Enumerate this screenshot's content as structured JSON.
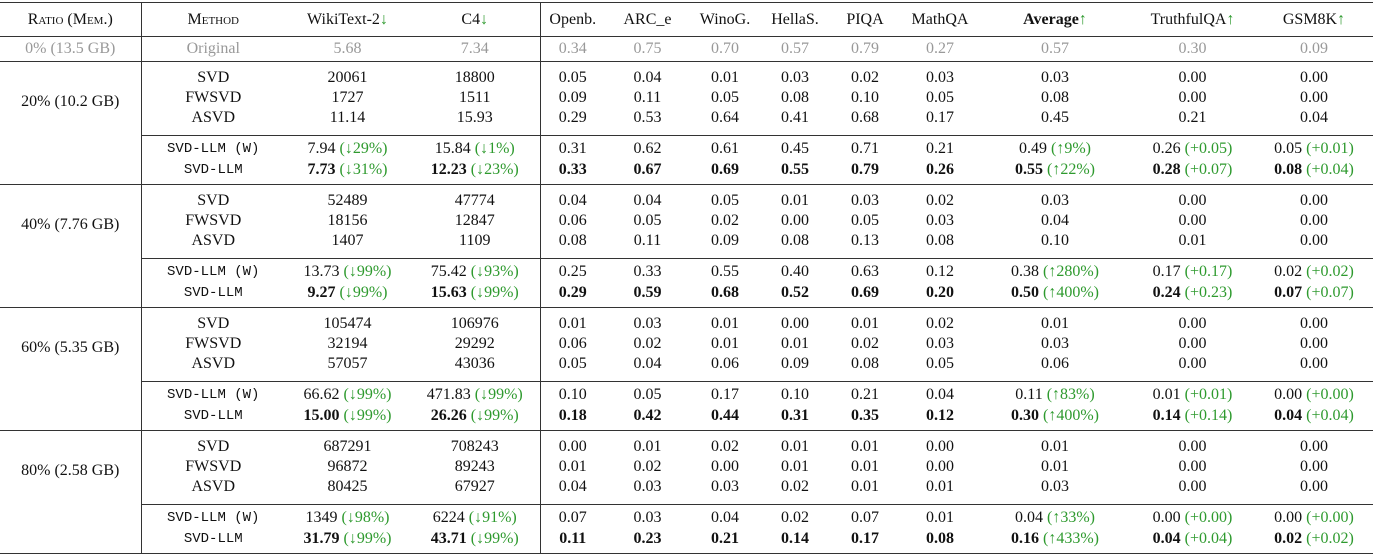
{
  "header": {
    "columns": [
      {
        "text": "Ratio (Mem.)",
        "smallcaps": true
      },
      {
        "text": "Method",
        "smallcaps": true
      },
      {
        "text": "WikiText-2",
        "arrow": "↓"
      },
      {
        "text": "C4",
        "arrow": "↓"
      },
      {
        "text": "Openb."
      },
      {
        "text": "ARC_e"
      },
      {
        "text": "WinoG."
      },
      {
        "text": "HellaS."
      },
      {
        "text": "PIQA"
      },
      {
        "text": "MathQA"
      },
      {
        "text": "Average",
        "arrow": "↑",
        "bold": true
      },
      {
        "text": "TruthfulQA",
        "arrow": "↑"
      },
      {
        "text": "GSM8K",
        "arrow": "↑"
      }
    ]
  },
  "original": {
    "ratio": "0% (13.5 GB)",
    "method": "Original",
    "cells": [
      "5.68",
      "7.34",
      "0.34",
      "0.75",
      "0.70",
      "0.57",
      "0.79",
      "0.27",
      "0.57",
      "0.30",
      "0.09"
    ]
  },
  "groups": [
    {
      "ratio": "20% (10.2 GB)",
      "baselines": [
        {
          "method": "SVD",
          "cells": [
            "20061",
            "18800",
            "0.05",
            "0.04",
            "0.01",
            "0.03",
            "0.02",
            "0.03",
            "0.03",
            "0.00",
            "0.00"
          ]
        },
        {
          "method": "FWSVD",
          "cells": [
            "1727",
            "1511",
            "0.09",
            "0.11",
            "0.05",
            "0.08",
            "0.10",
            "0.05",
            "0.08",
            "0.00",
            "0.00"
          ]
        },
        {
          "method": "ASVD",
          "cells": [
            "11.14",
            "15.93",
            "0.29",
            "0.53",
            "0.64",
            "0.41",
            "0.68",
            "0.17",
            "0.45",
            "0.21",
            "0.04"
          ]
        }
      ],
      "ours": [
        {
          "method": "SVD-LLM (W)",
          "cells": [
            {
              "value": "7.94",
              "delta": "(↓29%)"
            },
            {
              "value": "15.84",
              "delta": "(↓1%)"
            },
            "0.31",
            "0.62",
            "0.61",
            "0.45",
            "0.71",
            "0.21",
            {
              "value": "0.49",
              "delta": "(↑9%)"
            },
            {
              "value": "0.26",
              "delta": "(+0.05)"
            },
            {
              "value": "0.05",
              "delta": "(+0.01)"
            }
          ]
        },
        {
          "method": "SVD-LLM",
          "bold": true,
          "cells": [
            {
              "value": "7.73",
              "delta": "(↓31%)"
            },
            {
              "value": "12.23",
              "delta": "(↓23%)"
            },
            "0.33",
            "0.67",
            "0.69",
            "0.55",
            "0.79",
            "0.26",
            {
              "value": "0.55",
              "delta": "(↑22%)"
            },
            {
              "value": "0.28",
              "delta": "(+0.07)"
            },
            {
              "value": "0.08",
              "delta": "(+0.04)"
            }
          ]
        }
      ]
    },
    {
      "ratio": "40% (7.76 GB)",
      "baselines": [
        {
          "method": "SVD",
          "cells": [
            "52489",
            "47774",
            "0.04",
            "0.04",
            "0.05",
            "0.01",
            "0.03",
            "0.02",
            "0.03",
            "0.00",
            "0.00"
          ]
        },
        {
          "method": "FWSVD",
          "cells": [
            "18156",
            "12847",
            "0.06",
            "0.05",
            "0.02",
            "0.00",
            "0.05",
            "0.03",
            "0.04",
            "0.00",
            "0.00"
          ]
        },
        {
          "method": "ASVD",
          "cells": [
            "1407",
            "1109",
            "0.08",
            "0.11",
            "0.09",
            "0.08",
            "0.13",
            "0.08",
            "0.10",
            "0.01",
            "0.00"
          ]
        }
      ],
      "ours": [
        {
          "method": "SVD-LLM (W)",
          "cells": [
            {
              "value": "13.73",
              "delta": "(↓99%)"
            },
            {
              "value": "75.42",
              "delta": "(↓93%)"
            },
            "0.25",
            "0.33",
            "0.55",
            "0.40",
            "0.63",
            "0.12",
            {
              "value": "0.38",
              "delta": "(↑280%)"
            },
            {
              "value": "0.17",
              "delta": "(+0.17)"
            },
            {
              "value": "0.02",
              "delta": "(+0.02)"
            }
          ]
        },
        {
          "method": "SVD-LLM",
          "bold": true,
          "cells": [
            {
              "value": "9.27",
              "delta": "(↓99%)"
            },
            {
              "value": "15.63",
              "delta": "(↓99%)"
            },
            "0.29",
            "0.59",
            "0.68",
            "0.52",
            "0.69",
            "0.20",
            {
              "value": "0.50",
              "delta": "(↑400%)"
            },
            {
              "value": "0.24",
              "delta": "(+0.23)"
            },
            {
              "value": "0.07",
              "delta": "(+0.07)"
            }
          ]
        }
      ]
    },
    {
      "ratio": "60% (5.35 GB)",
      "baselines": [
        {
          "method": "SVD",
          "cells": [
            "105474",
            "106976",
            "0.01",
            "0.03",
            "0.01",
            "0.00",
            "0.01",
            "0.02",
            "0.01",
            "0.00",
            "0.00"
          ]
        },
        {
          "method": "FWSVD",
          "cells": [
            "32194",
            "29292",
            "0.06",
            "0.02",
            "0.01",
            "0.01",
            "0.02",
            "0.03",
            "0.03",
            "0.00",
            "0.00"
          ]
        },
        {
          "method": "ASVD",
          "cells": [
            "57057",
            "43036",
            "0.05",
            "0.04",
            "0.06",
            "0.09",
            "0.08",
            "0.05",
            "0.06",
            "0.00",
            "0.00"
          ]
        }
      ],
      "ours": [
        {
          "method": "SVD-LLM (W)",
          "cells": [
            {
              "value": "66.62",
              "delta": "(↓99%)"
            },
            {
              "value": "471.83",
              "delta": "(↓99%)"
            },
            "0.10",
            "0.05",
            "0.17",
            "0.10",
            "0.21",
            "0.04",
            {
              "value": "0.11",
              "delta": "(↑83%)"
            },
            {
              "value": "0.01",
              "delta": "(+0.01)"
            },
            {
              "value": "0.00",
              "delta": "(+0.00)"
            }
          ]
        },
        {
          "method": "SVD-LLM",
          "bold": true,
          "cells": [
            {
              "value": "15.00",
              "delta": "(↓99%)"
            },
            {
              "value": "26.26",
              "delta": "(↓99%)"
            },
            "0.18",
            "0.42",
            "0.44",
            "0.31",
            "0.35",
            "0.12",
            {
              "value": "0.30",
              "delta": "(↑400%)"
            },
            {
              "value": "0.14",
              "delta": "(+0.14)"
            },
            {
              "value": "0.04",
              "delta": "(+0.04)"
            }
          ]
        }
      ]
    },
    {
      "ratio": "80% (2.58 GB)",
      "baselines": [
        {
          "method": "SVD",
          "cells": [
            "687291",
            "708243",
            "0.00",
            "0.01",
            "0.02",
            "0.01",
            "0.01",
            "0.00",
            "0.01",
            "0.00",
            "0.00"
          ]
        },
        {
          "method": "FWSVD",
          "cells": [
            "96872",
            "89243",
            "0.01",
            "0.02",
            "0.00",
            "0.01",
            "0.01",
            "0.00",
            "0.01",
            "0.00",
            "0.00"
          ]
        },
        {
          "method": "ASVD",
          "cells": [
            "80425",
            "67927",
            "0.04",
            "0.03",
            "0.03",
            "0.02",
            "0.01",
            "0.01",
            "0.03",
            "0.00",
            "0.00"
          ]
        }
      ],
      "ours": [
        {
          "method": "SVD-LLM (W)",
          "cells": [
            {
              "value": "1349",
              "delta": "(↓98%)"
            },
            {
              "value": "6224",
              "delta": "(↓91%)"
            },
            "0.07",
            "0.03",
            "0.04",
            "0.02",
            "0.07",
            "0.01",
            {
              "value": "0.04",
              "delta": "(↑33%)"
            },
            {
              "value": "0.00",
              "delta": "(+0.00)"
            },
            {
              "value": "0.00",
              "delta": "(+0.00)"
            }
          ]
        },
        {
          "method": "SVD-LLM",
          "bold": true,
          "cells": [
            {
              "value": "31.79",
              "delta": "(↓99%)"
            },
            {
              "value": "43.71",
              "delta": "(↓99%)"
            },
            "0.11",
            "0.23",
            "0.21",
            "0.14",
            "0.17",
            "0.08",
            {
              "value": "0.16",
              "delta": "(↑433%)"
            },
            {
              "value": "0.04",
              "delta": "(+0.04)"
            },
            {
              "value": "0.02",
              "delta": "(+0.02)"
            }
          ]
        }
      ]
    }
  ]
}
